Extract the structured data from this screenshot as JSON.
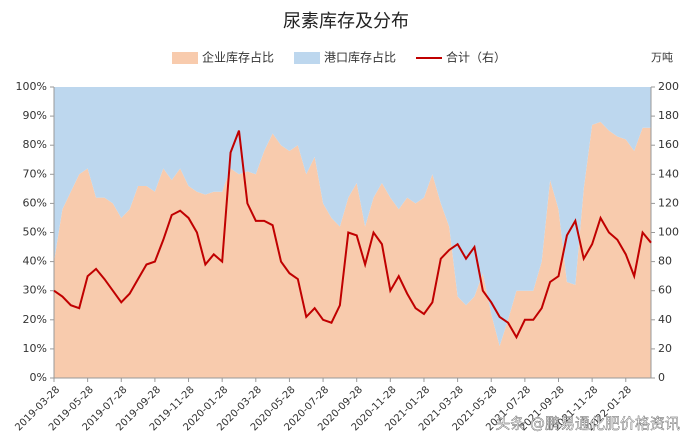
{
  "chart_data": {
    "type": "stacked_area_line",
    "title": "尿素库存及分布",
    "y2_unit": "万吨",
    "watermark": "头条 @鹏易通化肥价格资讯",
    "categories": [
      "2019-03-28",
      null,
      null,
      null,
      "2019-05-28",
      null,
      null,
      null,
      "2019-07-28",
      null,
      null,
      null,
      "2019-09-28",
      null,
      null,
      null,
      "2019-11-28",
      null,
      null,
      null,
      "2020-01-28",
      null,
      null,
      null,
      "2020-03-28",
      null,
      null,
      null,
      "2020-05-28",
      null,
      null,
      null,
      "2020-07-28",
      null,
      null,
      null,
      "2020-09-28",
      null,
      null,
      null,
      "2020-11-28",
      null,
      null,
      null,
      "2021-01-28",
      null,
      null,
      null,
      "2021-03-28",
      null,
      null,
      null,
      "2021-05-28",
      null,
      null,
      null,
      "2021-07-28",
      null,
      null,
      null,
      "2021-09-28",
      null,
      null,
      null,
      "2021-11-28",
      null,
      null,
      null,
      "2022-01-28",
      null,
      null,
      null
    ],
    "series": [
      {
        "name": "企业库存占比",
        "color": "#f8cbad",
        "axis": "y",
        "values": [
          40,
          58,
          64,
          70,
          72,
          62,
          62,
          60,
          55,
          58,
          66,
          66,
          64,
          72,
          68,
          72,
          66,
          64,
          63,
          64,
          64,
          72,
          70,
          71,
          70,
          78,
          84,
          80,
          78,
          80,
          70,
          76,
          60,
          55,
          52,
          62,
          67,
          52,
          62,
          67,
          62,
          58,
          62,
          60,
          62,
          70,
          60,
          52,
          28,
          25,
          28,
          36,
          22,
          11,
          20,
          30,
          30,
          30,
          40,
          68,
          58,
          33,
          32,
          65,
          87,
          88,
          85,
          83,
          82,
          78,
          86,
          86
        ]
      },
      {
        "name": "港口库存占比",
        "color": "#bdd7ee",
        "axis": "y",
        "values": [
          60,
          42,
          36,
          30,
          28,
          38,
          38,
          40,
          45,
          42,
          34,
          34,
          36,
          28,
          32,
          28,
          34,
          36,
          37,
          36,
          36,
          28,
          30,
          29,
          30,
          22,
          16,
          20,
          22,
          20,
          30,
          24,
          40,
          45,
          48,
          38,
          33,
          48,
          38,
          33,
          38,
          42,
          38,
          40,
          38,
          30,
          40,
          48,
          72,
          75,
          72,
          64,
          78,
          89,
          80,
          70,
          70,
          70,
          60,
          32,
          42,
          67,
          68,
          35,
          13,
          12,
          15,
          17,
          18,
          22,
          14,
          14
        ]
      },
      {
        "name": "合计（右）",
        "color": "#c00000",
        "axis": "y2",
        "values": [
          60,
          56,
          50,
          48,
          70,
          75,
          68,
          60,
          52,
          58,
          68,
          78,
          80,
          95,
          112,
          115,
          110,
          100,
          78,
          85,
          80,
          155,
          170,
          120,
          108,
          108,
          105,
          80,
          72,
          68,
          42,
          48,
          40,
          38,
          50,
          100,
          98,
          78,
          100,
          92,
          60,
          70,
          58,
          48,
          44,
          52,
          82,
          88,
          92,
          82,
          90,
          60,
          52,
          42,
          38,
          28,
          40,
          40,
          48,
          66,
          70,
          98,
          108,
          82,
          92,
          110,
          100,
          95,
          85,
          70,
          100,
          93
        ]
      }
    ],
    "ylim": [
      0,
      100
    ],
    "yticks": [
      {
        "value": 0,
        "label": "0%"
      },
      {
        "value": 10,
        "label": "10%"
      },
      {
        "value": 20,
        "label": "20%"
      },
      {
        "value": 30,
        "label": "30%"
      },
      {
        "value": 40,
        "label": "40%"
      },
      {
        "value": 50,
        "label": "50%"
      },
      {
        "value": 60,
        "label": "60%"
      },
      {
        "value": 70,
        "label": "70%"
      },
      {
        "value": 80,
        "label": "80%"
      },
      {
        "value": 90,
        "label": "90%"
      },
      {
        "value": 100,
        "label": "100%"
      }
    ],
    "y2lim": [
      0,
      200
    ],
    "y2ticks": [
      0,
      20,
      40,
      60,
      80,
      100,
      120,
      140,
      160,
      180,
      200
    ],
    "legend": "top"
  }
}
